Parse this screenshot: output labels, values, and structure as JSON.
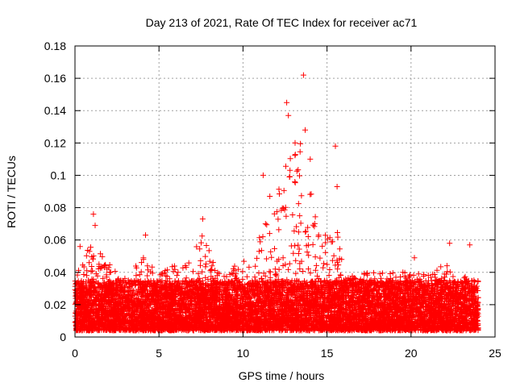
{
  "chart_data": {
    "type": "scatter",
    "title": "Day 213 of 2021, Rate Of TEC Index for receiver ac71",
    "xlabel": "GPS time / hours",
    "ylabel": "ROTI / TECUs",
    "xlim": [
      0,
      25
    ],
    "ylim": [
      0,
      0.18
    ],
    "xticks": [
      0,
      5,
      10,
      15,
      20,
      25
    ],
    "yticks": [
      0,
      0.02,
      0.04,
      0.06,
      0.08,
      0.1,
      0.12,
      0.14,
      0.16,
      0.18
    ],
    "xtick_labels": [
      "0",
      "5",
      "10",
      "15",
      "20",
      "25"
    ],
    "ytick_labels": [
      "0",
      "0.02",
      "0.04",
      "0.06",
      "0.08",
      "0.1",
      "0.12",
      "0.14",
      "0.16",
      "0.18"
    ],
    "grid": true,
    "marker": "+",
    "color": "#ff0000",
    "series": [
      {
        "name": "ROTI",
        "x_range": [
          0,
          24
        ],
        "baseline_range": [
          0.004,
          0.035
        ],
        "notable_points": [
          {
            "x": 0.3,
            "y": 0.056
          },
          {
            "x": 1.1,
            "y": 0.076
          },
          {
            "x": 1.2,
            "y": 0.069
          },
          {
            "x": 4.2,
            "y": 0.063
          },
          {
            "x": 7.6,
            "y": 0.073
          },
          {
            "x": 11.2,
            "y": 0.1
          },
          {
            "x": 11.6,
            "y": 0.087
          },
          {
            "x": 12.6,
            "y": 0.145
          },
          {
            "x": 12.7,
            "y": 0.137
          },
          {
            "x": 13.1,
            "y": 0.12
          },
          {
            "x": 13.6,
            "y": 0.162
          },
          {
            "x": 13.7,
            "y": 0.128
          },
          {
            "x": 14.0,
            "y": 0.11
          },
          {
            "x": 15.5,
            "y": 0.118
          },
          {
            "x": 15.6,
            "y": 0.093
          },
          {
            "x": 20.2,
            "y": 0.049
          },
          {
            "x": 22.3,
            "y": 0.058
          },
          {
            "x": 23.5,
            "y": 0.057
          }
        ],
        "envelope": [
          [
            0,
            0.035
          ],
          [
            0.5,
            0.05
          ],
          [
            1,
            0.06
          ],
          [
            2,
            0.045
          ],
          [
            3,
            0.04
          ],
          [
            4,
            0.05
          ],
          [
            5,
            0.04
          ],
          [
            6,
            0.045
          ],
          [
            7,
            0.05
          ],
          [
            7.6,
            0.065
          ],
          [
            8.5,
            0.04
          ],
          [
            9.5,
            0.045
          ],
          [
            10.5,
            0.05
          ],
          [
            11,
            0.065
          ],
          [
            11.5,
            0.075
          ],
          [
            12,
            0.085
          ],
          [
            12.5,
            0.11
          ],
          [
            13,
            0.12
          ],
          [
            13.5,
            0.12
          ],
          [
            14,
            0.1
          ],
          [
            14.5,
            0.07
          ],
          [
            15,
            0.065
          ],
          [
            15.5,
            0.075
          ],
          [
            16,
            0.04
          ],
          [
            17,
            0.04
          ],
          [
            18,
            0.04
          ],
          [
            19,
            0.04
          ],
          [
            20,
            0.04
          ],
          [
            21,
            0.04
          ],
          [
            22,
            0.045
          ],
          [
            23,
            0.04
          ],
          [
            24,
            0.035
          ]
        ]
      }
    ]
  }
}
